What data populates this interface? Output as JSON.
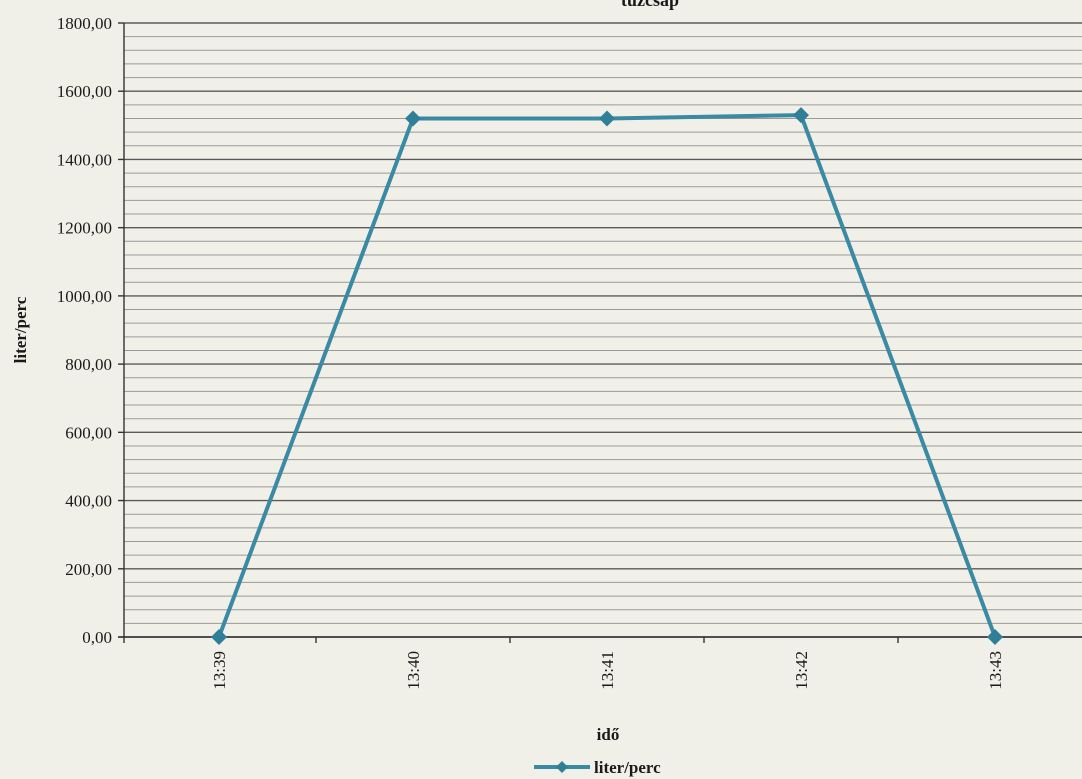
{
  "chart_data": {
    "type": "line",
    "title": "tűzcsap",
    "xlabel": "idő",
    "ylabel": "liter/perc",
    "categories": [
      "13:39",
      "13:40",
      "13:41",
      "13:42",
      "13:43"
    ],
    "series": [
      {
        "name": "liter/perc",
        "values": [
          0,
          1520,
          1520,
          1530,
          0
        ]
      }
    ],
    "ylim": [
      0,
      1800
    ],
    "y_ticks": [
      "0,00",
      "200,00",
      "400,00",
      "600,00",
      "800,00",
      "1000,00",
      "1200,00",
      "1400,00",
      "1600,00",
      "1800,00"
    ],
    "grid": true,
    "legend_position": "bottom",
    "colors": {
      "series": "#3a8aa3",
      "marker": "#2f7f99",
      "grid_major": "#5a5a5a",
      "grid_minor": "#9a9a9a"
    }
  }
}
